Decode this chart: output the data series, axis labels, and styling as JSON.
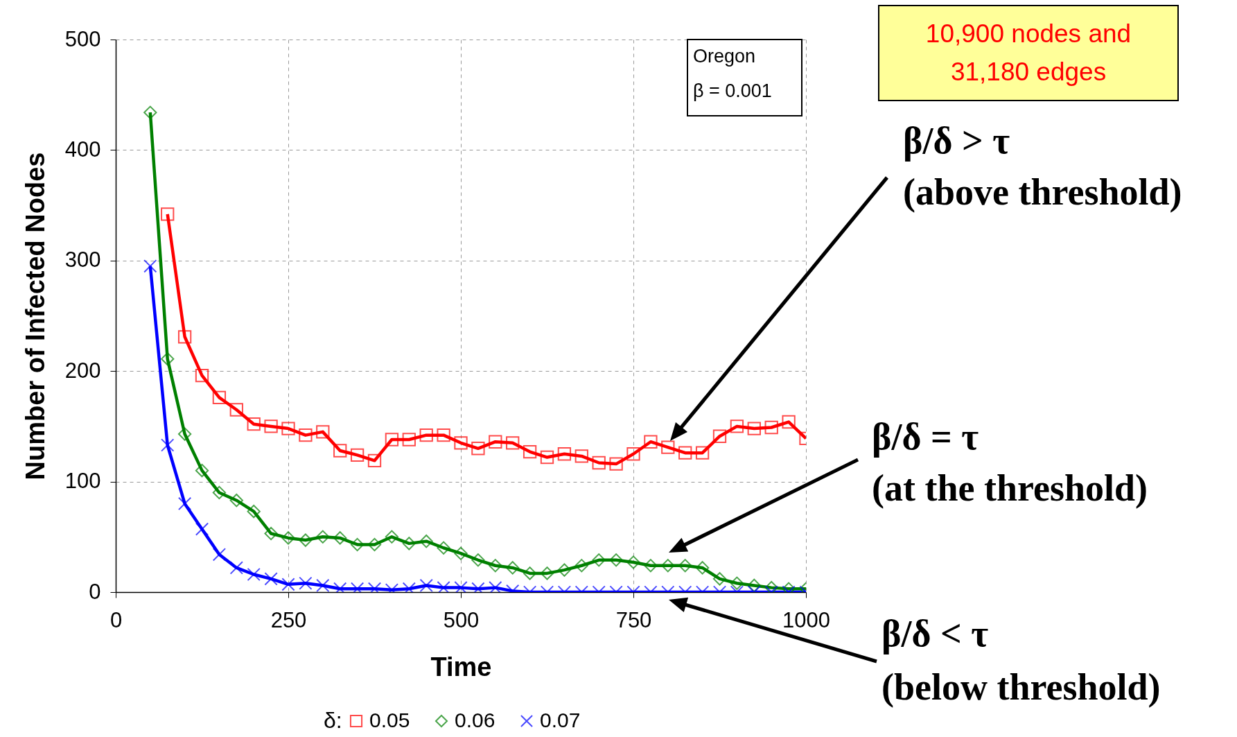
{
  "chart_data": {
    "type": "line",
    "xlabel": "Time",
    "ylabel": "Number of Infected Nodes",
    "legend_title": "δ:",
    "legend": "bottom",
    "grid": true,
    "line_style": "solid",
    "xlim": [
      0,
      1000
    ],
    "xticks": [
      0,
      250,
      500,
      750,
      1000
    ],
    "ylim": [
      0,
      500
    ],
    "yticks": [
      0,
      100,
      200,
      300,
      400,
      500
    ],
    "x": [
      50,
      75,
      100,
      125,
      150,
      175,
      200,
      225,
      250,
      275,
      300,
      325,
      350,
      375,
      400,
      425,
      450,
      475,
      500,
      525,
      550,
      575,
      600,
      625,
      650,
      675,
      700,
      725,
      750,
      775,
      800,
      825,
      850,
      875,
      900,
      925,
      950,
      975,
      1000
    ],
    "series": [
      {
        "name": "0.05",
        "color": "#ff0000",
        "marker": "square",
        "values": [
          null,
          342,
          231,
          196,
          176,
          165,
          152,
          150,
          148,
          142,
          145,
          128,
          124,
          119,
          138,
          138,
          142,
          142,
          135,
          130,
          136,
          135,
          127,
          122,
          125,
          123,
          117,
          116,
          125,
          136,
          131,
          126,
          126,
          141,
          150,
          148,
          149,
          154,
          139
        ]
      },
      {
        "name": "0.06",
        "color": "#008000",
        "marker": "diamond",
        "values": [
          434,
          211,
          143,
          110,
          90,
          83,
          73,
          53,
          49,
          47,
          50,
          49,
          43,
          43,
          50,
          44,
          46,
          40,
          35,
          29,
          24,
          22,
          17,
          17,
          20,
          24,
          29,
          29,
          27,
          24,
          24,
          24,
          22,
          12,
          8,
          6,
          4,
          3,
          3
        ]
      },
      {
        "name": "0.07",
        "color": "#0000ff",
        "marker": "cross",
        "values": [
          295,
          133,
          80,
          57,
          34,
          22,
          16,
          12,
          7,
          8,
          6,
          3,
          3,
          3,
          2,
          3,
          6,
          4,
          4,
          3,
          4,
          1,
          0,
          0,
          0,
          0,
          0,
          0,
          0,
          0,
          0,
          0,
          0,
          0,
          0,
          0,
          0,
          0,
          0
        ]
      }
    ],
    "annotations": [
      "Oregon\nβ =  0.001",
      "10,900 nodes and\n31,180 edges",
      "β/δ > τ\n(above threshold)",
      "β/δ = τ\n(at the threshold)",
      "β/δ < τ\n(below threshold)"
    ]
  }
}
